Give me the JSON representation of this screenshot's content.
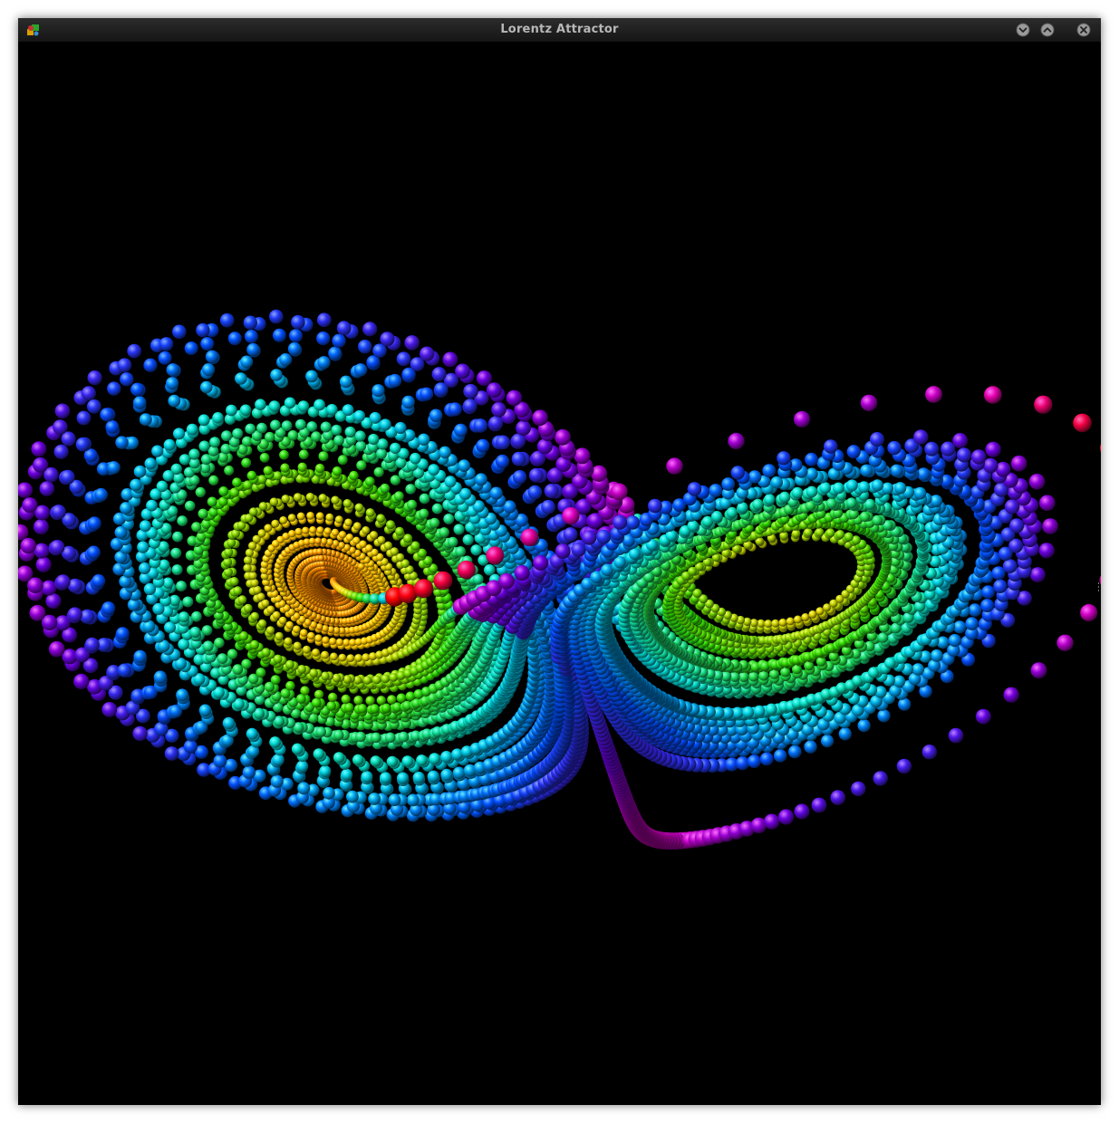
{
  "window": {
    "title": "Lorentz Attractor",
    "app_icon": "app-icon",
    "buttons": [
      {
        "name": "minimize-button",
        "icon": "chevron-down-icon"
      },
      {
        "name": "maximize-button",
        "icon": "chevron-up-icon"
      },
      {
        "name": "close-button",
        "icon": "close-icon"
      }
    ]
  },
  "scene": {
    "background": "#000000",
    "colormap": [
      "#ff6a00",
      "#ffcc00",
      "#33dd00",
      "#00e0e0",
      "#0050ff",
      "#6a00e0",
      "#e000c0",
      "#ff0000"
    ]
  }
}
